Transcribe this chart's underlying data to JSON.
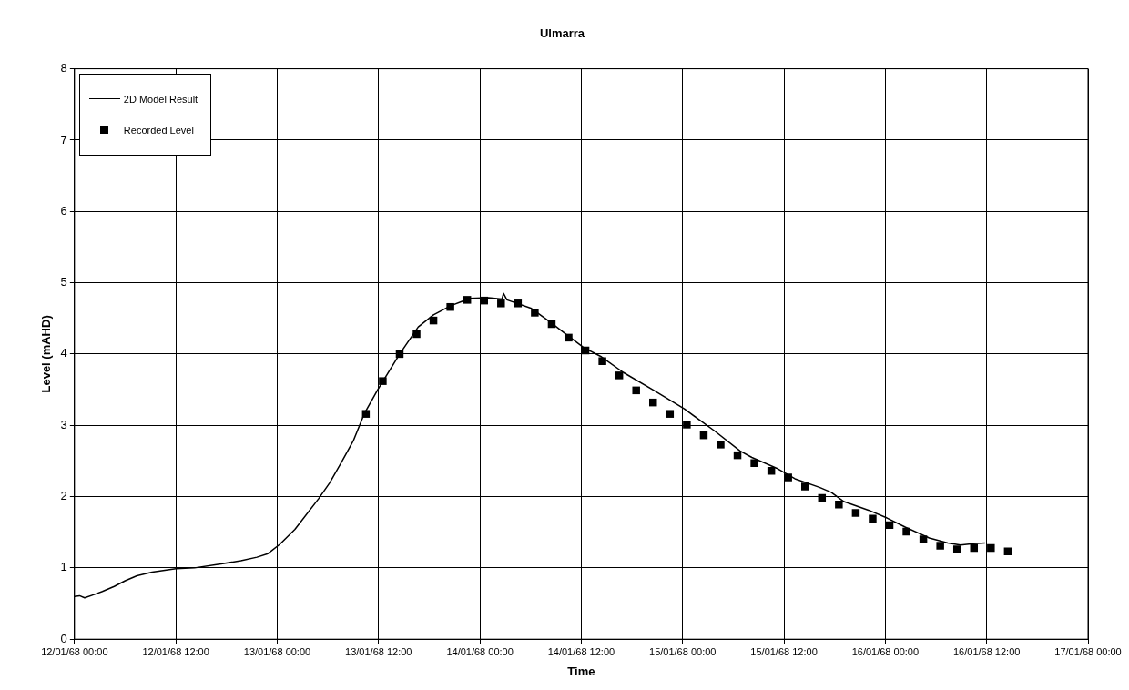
{
  "chart_data": {
    "type": "line",
    "title": "Ulmarra",
    "xlabel": "Time",
    "ylabel": "Level (mAHD)",
    "xlim": [
      "1968-01-12T00:00",
      "1968-01-17T00:00"
    ],
    "xticks": [
      {
        "value": "1968-01-12T00:00",
        "label": "12/01/68 00:00"
      },
      {
        "value": "1968-01-12T12:00",
        "label": "12/01/68 12:00"
      },
      {
        "value": "1968-01-13T00:00",
        "label": "13/01/68 00:00"
      },
      {
        "value": "1968-01-13T12:00",
        "label": "13/01/68 12:00"
      },
      {
        "value": "1968-01-14T00:00",
        "label": "14/01/68 00:00"
      },
      {
        "value": "1968-01-14T12:00",
        "label": "14/01/68 12:00"
      },
      {
        "value": "1968-01-15T00:00",
        "label": "15/01/68 00:00"
      },
      {
        "value": "1968-01-15T12:00",
        "label": "15/01/68 12:00"
      },
      {
        "value": "1968-01-16T00:00",
        "label": "16/01/68 00:00"
      },
      {
        "value": "1968-01-16T12:00",
        "label": "16/01/68 12:00"
      },
      {
        "value": "1968-01-17T00:00",
        "label": "17/01/68 00:00"
      }
    ],
    "ylim": [
      0,
      8
    ],
    "yticks": [
      0,
      1,
      2,
      3,
      4,
      5,
      6,
      7,
      8
    ],
    "grid": true,
    "legend": "top left",
    "series": [
      {
        "name": "2D Model Result",
        "type": "line",
        "color": "#000000",
        "marker": "none",
        "x": [
          "1968-01-12T00:00",
          "1968-01-12T00:36",
          "1968-01-12T01:12",
          "1968-01-12T02:24",
          "1968-01-12T03:18",
          "1968-01-12T04:42",
          "1968-01-12T06:00",
          "1968-01-12T07:24",
          "1968-01-12T09:12",
          "1968-01-12T12:00",
          "1968-01-12T14:12",
          "1968-01-12T17:00",
          "1968-01-12T19:42",
          "1968-01-12T21:36",
          "1968-01-12T22:54",
          "1968-01-13T00:18",
          "1968-01-13T02:06",
          "1968-01-13T04:54",
          "1968-01-13T06:12",
          "1968-01-13T07:36",
          "1968-01-13T09:00",
          "1968-01-13T10:18",
          "1968-01-13T11:54",
          "1968-01-13T14:30",
          "1968-01-13T16:42",
          "1968-01-13T18:30",
          "1968-01-13T20:36",
          "1968-01-13T22:48",
          "1968-01-14T01:00",
          "1968-01-14T02:36",
          "1968-01-14T02:48",
          "1968-01-14T03:12",
          "1968-01-14T06:06",
          "1968-01-14T08:18",
          "1968-01-14T10:24",
          "1968-01-14T12:18",
          "1968-01-14T14:24",
          "1968-01-14T17:00",
          "1968-01-14T20:36",
          "1968-01-15T00:12",
          "1968-01-15T03:48",
          "1968-01-15T06:48",
          "1968-01-15T08:12",
          "1968-01-15T11:06",
          "1968-01-15T13:18",
          "1968-01-15T16:12",
          "1968-01-15T17:36",
          "1968-01-15T19:06",
          "1968-01-15T22:00",
          "1968-01-16T00:12",
          "1968-01-16T02:24",
          "1968-01-16T05:12",
          "1968-01-16T07:24",
          "1968-01-16T08:54",
          "1968-01-16T10:24",
          "1968-01-16T11:48"
        ],
        "values": [
          0.6,
          0.61,
          0.58,
          0.63,
          0.67,
          0.74,
          0.82,
          0.89,
          0.94,
          0.99,
          1.0,
          1.05,
          1.1,
          1.15,
          1.2,
          1.33,
          1.54,
          1.97,
          2.19,
          2.48,
          2.78,
          3.16,
          3.5,
          4.0,
          4.38,
          4.55,
          4.68,
          4.78,
          4.79,
          4.77,
          4.85,
          4.76,
          4.64,
          4.45,
          4.26,
          4.09,
          3.96,
          3.74,
          3.49,
          3.23,
          2.92,
          2.64,
          2.55,
          2.4,
          2.25,
          2.13,
          2.06,
          1.93,
          1.81,
          1.7,
          1.57,
          1.42,
          1.35,
          1.32,
          1.34,
          1.35
        ]
      },
      {
        "name": "Recorded Level",
        "type": "scatter",
        "color": "#000000",
        "marker": "square",
        "x": [
          "1968-01-13T10:30",
          "1968-01-13T12:30",
          "1968-01-13T14:30",
          "1968-01-13T16:30",
          "1968-01-13T18:30",
          "1968-01-13T20:30",
          "1968-01-13T22:30",
          "1968-01-14T00:30",
          "1968-01-14T02:30",
          "1968-01-14T04:30",
          "1968-01-14T06:30",
          "1968-01-14T08:30",
          "1968-01-14T10:30",
          "1968-01-14T12:30",
          "1968-01-14T14:30",
          "1968-01-14T16:30",
          "1968-01-14T18:30",
          "1968-01-14T20:30",
          "1968-01-14T22:30",
          "1968-01-15T00:30",
          "1968-01-15T02:30",
          "1968-01-15T04:30",
          "1968-01-15T06:30",
          "1968-01-15T08:30",
          "1968-01-15T10:30",
          "1968-01-15T12:30",
          "1968-01-15T14:30",
          "1968-01-15T16:30",
          "1968-01-15T18:30",
          "1968-01-15T20:30",
          "1968-01-15T22:30",
          "1968-01-16T00:30",
          "1968-01-16T02:30",
          "1968-01-16T04:30",
          "1968-01-16T06:30",
          "1968-01-16T08:30",
          "1968-01-16T10:30",
          "1968-01-16T12:30",
          "1968-01-16T14:30"
        ],
        "values": [
          3.16,
          3.62,
          4.0,
          4.28,
          4.47,
          4.66,
          4.76,
          4.75,
          4.71,
          4.71,
          4.58,
          4.42,
          4.23,
          4.05,
          3.9,
          3.7,
          3.49,
          3.32,
          3.16,
          3.01,
          2.86,
          2.73,
          2.58,
          2.47,
          2.36,
          2.27,
          2.14,
          1.98,
          1.89,
          1.77,
          1.69,
          1.6,
          1.51,
          1.4,
          1.31,
          1.26,
          1.28,
          1.28,
          1.23
        ]
      }
    ]
  }
}
